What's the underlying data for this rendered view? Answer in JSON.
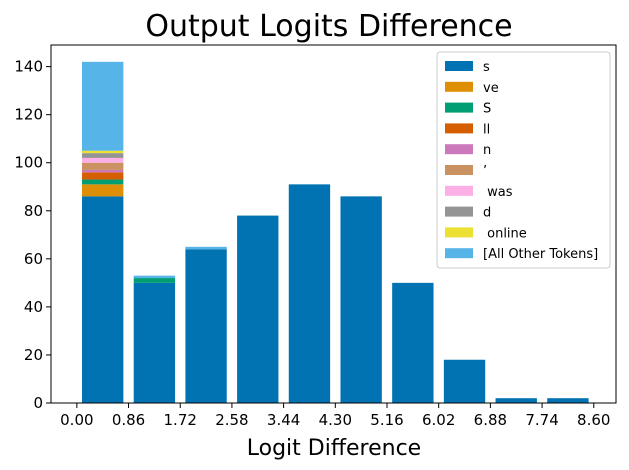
{
  "chart_data": {
    "type": "bar",
    "title": "Output Logits Difference",
    "xlabel": "Logit Difference",
    "ylabel": "",
    "xlim": [
      -0.43,
      8.97
    ],
    "ylim": [
      0,
      149
    ],
    "x_ticks": [
      "0.00",
      "0.86",
      "1.72",
      "2.58",
      "3.44",
      "4.30",
      "5.16",
      "6.02",
      "6.88",
      "7.74",
      "8.60"
    ],
    "y_ticks": [
      "0",
      "20",
      "40",
      "60",
      "80",
      "100",
      "120",
      "140"
    ],
    "bin_width": 0.86,
    "bin_centers": [
      0.43,
      1.29,
      2.15,
      3.01,
      3.87,
      4.73,
      5.59,
      6.45,
      7.31,
      8.17
    ],
    "bar_width_fraction": 0.8,
    "legend_position": "top-right",
    "stacked": true,
    "series": [
      {
        "name": "s",
        "color": "#0173b2",
        "values": [
          86,
          50,
          64,
          78,
          91,
          86,
          50,
          18,
          2,
          2
        ]
      },
      {
        "name": "ve",
        "color": "#de8f05",
        "values": [
          5,
          0,
          0,
          0,
          0,
          0,
          0,
          0,
          0,
          0
        ]
      },
      {
        "name": "S",
        "color": "#029e73",
        "values": [
          2,
          2,
          0,
          0,
          0,
          0,
          0,
          0,
          0,
          0
        ]
      },
      {
        "name": "ll",
        "color": "#d55e00",
        "values": [
          3,
          0,
          0,
          0,
          0,
          0,
          0,
          0,
          0,
          0
        ]
      },
      {
        "name": "n",
        "color": "#cc78bc",
        "values": [
          1,
          0,
          0,
          0,
          0,
          0,
          0,
          0,
          0,
          0
        ]
      },
      {
        "name": "’",
        "color": "#ca9161",
        "values": [
          3,
          0,
          0,
          0,
          0,
          0,
          0,
          0,
          0,
          0
        ]
      },
      {
        "name": " was",
        "color": "#fbafe4",
        "values": [
          2,
          0,
          0,
          0,
          0,
          0,
          0,
          0,
          0,
          0
        ]
      },
      {
        "name": "d",
        "color": "#949494",
        "values": [
          2,
          0,
          0,
          0,
          0,
          0,
          0,
          0,
          0,
          0
        ]
      },
      {
        "name": " online",
        "color": "#ece133",
        "values": [
          1,
          0,
          0,
          0,
          0,
          0,
          0,
          0,
          0,
          0
        ]
      },
      {
        "name": "[All Other Tokens]",
        "color": "#56b4e9",
        "values": [
          37,
          1,
          1,
          0,
          0,
          0,
          0,
          0,
          0,
          0
        ]
      }
    ]
  }
}
